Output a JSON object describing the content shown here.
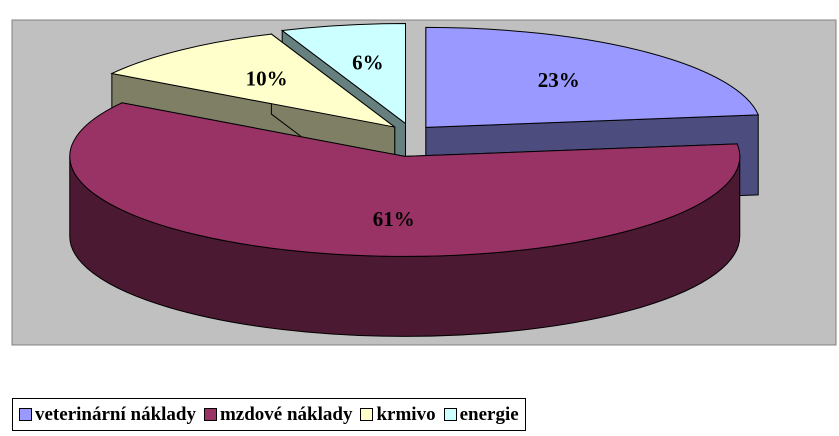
{
  "chart_data": {
    "type": "pie3d",
    "categories": [
      "veterinární náklady",
      "mzdové náklady",
      "krmivo",
      "energie"
    ],
    "values": [
      23,
      61,
      10,
      6
    ],
    "value_labels": [
      "23%",
      "61%",
      "10%",
      "6%"
    ],
    "colors": [
      "#9999ff",
      "#993366",
      "#ffffcc",
      "#ccffff"
    ],
    "legend": "bottom"
  }
}
